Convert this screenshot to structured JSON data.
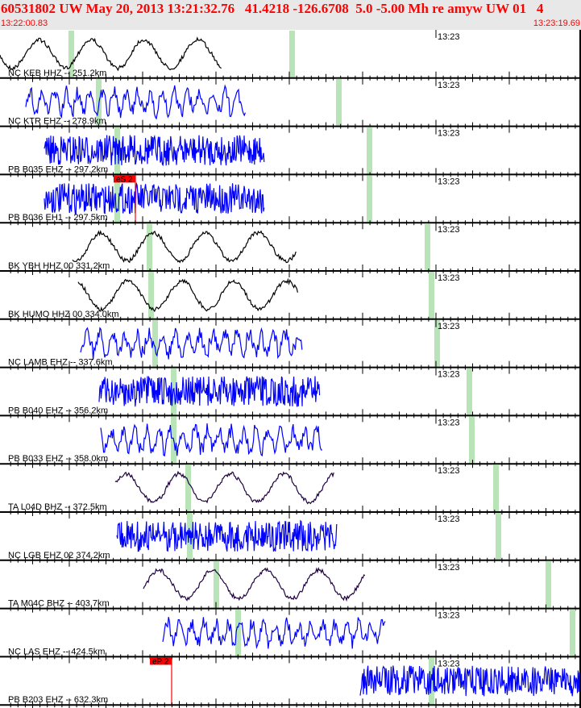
{
  "header": {
    "title": "60531802 UW May 20, 2013 13:21:32.76   41.4218 -126.6708  5.0 -5.00 Mh re amyw UW 01   4",
    "start_time": "13:22:00.83",
    "end_time": "13:23:19.69"
  },
  "chart_data": {
    "type": "line",
    "time_tick_label": "13:23",
    "colors": {
      "marker": "#b8e4b8",
      "pick": "#ff0000",
      "blue": "#0000ff",
      "black": "#000000",
      "purple": "#200040"
    },
    "traces": [
      {
        "label": "NC KEB HHZ -- 251.2km",
        "color": "#000000",
        "style": "slow"
      },
      {
        "label": "NC KTR EHZ -- 278.9km",
        "color": "#0000ff",
        "style": "mid"
      },
      {
        "label": "PB B035 EHZ -- 297.2km",
        "color": "#0000ff",
        "style": "fast"
      },
      {
        "label": "PB B036 EH1 -- 297.5km",
        "color": "#0000ff",
        "style": "fast",
        "pick": "eS 2"
      },
      {
        "label": "BK YBH HHZ 00 331.2km",
        "color": "#000000",
        "style": "slow"
      },
      {
        "label": "BK HUMO HHZ 00 334.0km",
        "color": "#000000",
        "style": "slow"
      },
      {
        "label": "NC LAMB EHZ -- 337.6km",
        "color": "#0000ff",
        "style": "mid"
      },
      {
        "label": "PB B040 EHZ -- 356.2km",
        "color": "#0000ff",
        "style": "fast"
      },
      {
        "label": "PB B033 EHZ -- 358.0km",
        "color": "#0000ff",
        "style": "mid"
      },
      {
        "label": "TA L04D BHZ -- 372.5km",
        "color": "#200040",
        "style": "slow"
      },
      {
        "label": "NC LGB EHZ 02 374.2km",
        "color": "#0000ff",
        "style": "fast"
      },
      {
        "label": "TA M04C BHZ -- 403.7km",
        "color": "#200040",
        "style": "slow"
      },
      {
        "label": "NC LAS EHZ -- 424.5km",
        "color": "#0000ff",
        "style": "mid"
      },
      {
        "label": "PB B203 EHZ -- 632.3km",
        "color": "#0000ff",
        "style": "fast",
        "pick": "eP 2"
      }
    ]
  }
}
